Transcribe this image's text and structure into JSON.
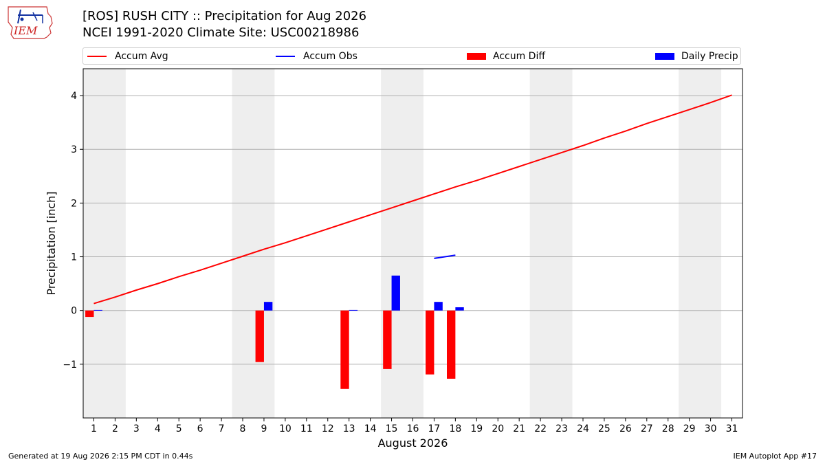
{
  "header": {
    "title_line1": "[ROS] RUSH CITY :: Precipitation for Aug 2026",
    "title_line2": "NCEI 1991-2020 Climate Site: USC00218986",
    "logo_text": "IEM"
  },
  "footer": {
    "left": "Generated at 19 Aug 2026 2:15 PM CDT in 0.44s",
    "right": "IEM Autoplot App #17"
  },
  "chart_data": {
    "type": "bar",
    "xlabel": "August 2026",
    "ylabel": "Precipitation [inch]",
    "xlim": [
      0.5,
      31.5
    ],
    "ylim": [
      -2.0,
      4.5
    ],
    "yticks": [
      -1,
      0,
      1,
      2,
      3,
      4
    ],
    "ytick_labels": [
      "−1",
      "0",
      "1",
      "2",
      "3",
      "4"
    ],
    "days": [
      1,
      2,
      3,
      4,
      5,
      6,
      7,
      8,
      9,
      10,
      11,
      12,
      13,
      14,
      15,
      16,
      17,
      18,
      19,
      20,
      21,
      22,
      23,
      24,
      25,
      26,
      27,
      28,
      29,
      30,
      31
    ],
    "weekend_bands": [
      [
        0.5,
        2.5
      ],
      [
        7.5,
        9.5
      ],
      [
        14.5,
        16.5
      ],
      [
        21.5,
        23.5
      ],
      [
        28.5,
        30.5
      ]
    ],
    "grid": "y",
    "legend_position": "top",
    "series": [
      {
        "name": "Accum Avg",
        "kind": "line",
        "color": "#ff0000",
        "x": [
          1,
          2,
          3,
          4,
          5,
          6,
          7,
          8,
          9,
          10,
          11,
          12,
          13,
          14,
          15,
          16,
          17,
          18,
          19,
          20,
          21,
          22,
          23,
          24,
          25,
          26,
          27,
          28,
          29,
          30,
          31
        ],
        "values": [
          0.13,
          0.25,
          0.38,
          0.5,
          0.63,
          0.75,
          0.88,
          1.01,
          1.14,
          1.26,
          1.39,
          1.52,
          1.65,
          1.78,
          1.91,
          2.04,
          2.17,
          2.3,
          2.42,
          2.55,
          2.68,
          2.81,
          2.94,
          3.07,
          3.21,
          3.34,
          3.48,
          3.61,
          3.74,
          3.87,
          4.01
        ]
      },
      {
        "name": "Accum Obs",
        "kind": "line",
        "color": "#0000ff",
        "x": [
          17,
          18
        ],
        "values": [
          0.97,
          1.03
        ]
      },
      {
        "name": "Accum Diff",
        "kind": "bar",
        "color": "#ff0000",
        "x": [
          1,
          9,
          13,
          15,
          17,
          18
        ],
        "values": [
          -0.12,
          -0.96,
          -1.46,
          -1.09,
          -1.19,
          -1.27
        ]
      },
      {
        "name": "Daily Precip",
        "kind": "bar",
        "color": "#0000ff",
        "x": [
          1,
          9,
          13,
          15,
          17,
          18
        ],
        "values": [
          0.01,
          0.16,
          0.01,
          0.65,
          0.16,
          0.06
        ]
      }
    ]
  }
}
